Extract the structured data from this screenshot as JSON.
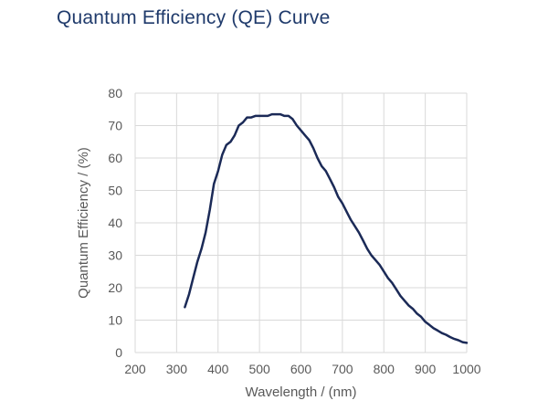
{
  "page": {
    "title": "Quantum Efficiency (QE) Curve"
  },
  "colors": {
    "line": "#1b2a57",
    "grid": "#d9d9d9",
    "text": "#595959",
    "title": "#1f3a6b"
  },
  "chart_data": {
    "type": "line",
    "title": "Quantum Efficiency (QE) Curve",
    "xlabel": "Wavelength / (nm)",
    "ylabel": "Quantum Efficiency / (%)",
    "xlim": [
      200,
      1000
    ],
    "ylim": [
      0,
      80
    ],
    "x_ticks": [
      "200",
      "300",
      "400",
      "500",
      "600",
      "700",
      "800",
      "900",
      "1000"
    ],
    "y_ticks": [
      "0",
      "10",
      "20",
      "30",
      "40",
      "50",
      "60",
      "70",
      "80"
    ],
    "grid": true,
    "series": [
      {
        "x": [
          320,
          330,
          340,
          350,
          360,
          370,
          380,
          390,
          400,
          410,
          420,
          430,
          440,
          450,
          460,
          470,
          480,
          490,
          500,
          510,
          520,
          530,
          540,
          550,
          560,
          570,
          580,
          590,
          600,
          610,
          620,
          630,
          640,
          650,
          660,
          670,
          680,
          690,
          700,
          710,
          720,
          730,
          740,
          750,
          760,
          770,
          780,
          790,
          800,
          810,
          820,
          830,
          840,
          850,
          860,
          870,
          880,
          890,
          900,
          910,
          920,
          930,
          940,
          950,
          960,
          970,
          980,
          990,
          1000
        ],
        "y": [
          14,
          18,
          23,
          28,
          32,
          37,
          44,
          52,
          56,
          61,
          64,
          65,
          67,
          70,
          71,
          72.5,
          72.5,
          73,
          73,
          73,
          73,
          73.5,
          73.5,
          73.5,
          73,
          73,
          72,
          70,
          68.5,
          67,
          65.5,
          63,
          60,
          57.5,
          56,
          53.5,
          51,
          48,
          46,
          43.5,
          41,
          39,
          37,
          34.5,
          32,
          30,
          28.5,
          27,
          25,
          23,
          21.5,
          19.5,
          17.5,
          16,
          14.5,
          13.5,
          12,
          11,
          9.5,
          8.5,
          7.5,
          6.8,
          6,
          5.5,
          4.8,
          4.2,
          3.8,
          3.2,
          3
        ]
      }
    ]
  }
}
